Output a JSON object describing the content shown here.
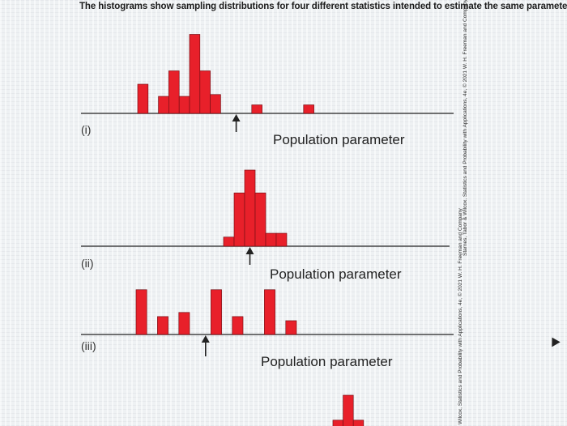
{
  "page": {
    "title": "The histograms show sampling distributions for four different statistics intended to estimate the same parameter."
  },
  "credits": {
    "upper": "Starnes, Tabor & Wilcox, Statistics and Probability with Applications, 4e, © 2021 W. H. Freeman and Company",
    "lower": "Wilcox, Statistics and Probability with Applications, 4e, © 2021 W. H. Freeman and Company"
  },
  "colors": {
    "bar_fill": "#e8202a",
    "bar_stroke": "#7a1016",
    "axis": "#444444",
    "arrow": "#222222"
  },
  "chart_data": [
    {
      "type": "bar",
      "panel_label": "(i)",
      "annotation": "Population parameter",
      "bars": [
        {
          "bin": 1,
          "height": 4.8
        },
        {
          "bin": 3,
          "height": 2.8
        },
        {
          "bin": 4,
          "height": 7.0
        },
        {
          "bin": 5,
          "height": 2.8
        },
        {
          "bin": 6,
          "height": 13.0
        },
        {
          "bin": 7,
          "height": 7.0
        },
        {
          "bin": 8,
          "height": 3.1
        },
        {
          "bin": 12,
          "height": 1.4
        },
        {
          "bin": 17,
          "height": 1.4
        }
      ],
      "parameter_bin": 10
    },
    {
      "type": "bar",
      "panel_label": "(ii)",
      "annotation": "Population parameter",
      "bars": [
        {
          "bin": 1,
          "height": 1.2
        },
        {
          "bin": 2,
          "height": 7.0
        },
        {
          "bin": 3,
          "height": 10.0
        },
        {
          "bin": 4,
          "height": 7.0
        },
        {
          "bin": 5,
          "height": 1.7
        },
        {
          "bin": 6,
          "height": 1.7
        }
      ],
      "parameter_bin": 3
    },
    {
      "type": "bar",
      "panel_label": "(iii)",
      "annotation": "Population parameter",
      "bars": [
        {
          "bin": 1,
          "height": 6.5
        },
        {
          "bin": 3,
          "height": 2.6
        },
        {
          "bin": 5,
          "height": 3.2
        },
        {
          "bin": 8,
          "height": 6.5
        },
        {
          "bin": 10,
          "height": 2.6
        },
        {
          "bin": 13,
          "height": 6.5
        },
        {
          "bin": 15,
          "height": 2.0
        }
      ],
      "parameter_bin": 7
    },
    {
      "type": "bar",
      "panel_label": "",
      "annotation": "",
      "bars": [
        {
          "bin": 1,
          "height": 1.5
        },
        {
          "bin": 2,
          "height": 5.0
        },
        {
          "bin": 3,
          "height": 1.5
        }
      ],
      "parameter_bin": null
    }
  ]
}
